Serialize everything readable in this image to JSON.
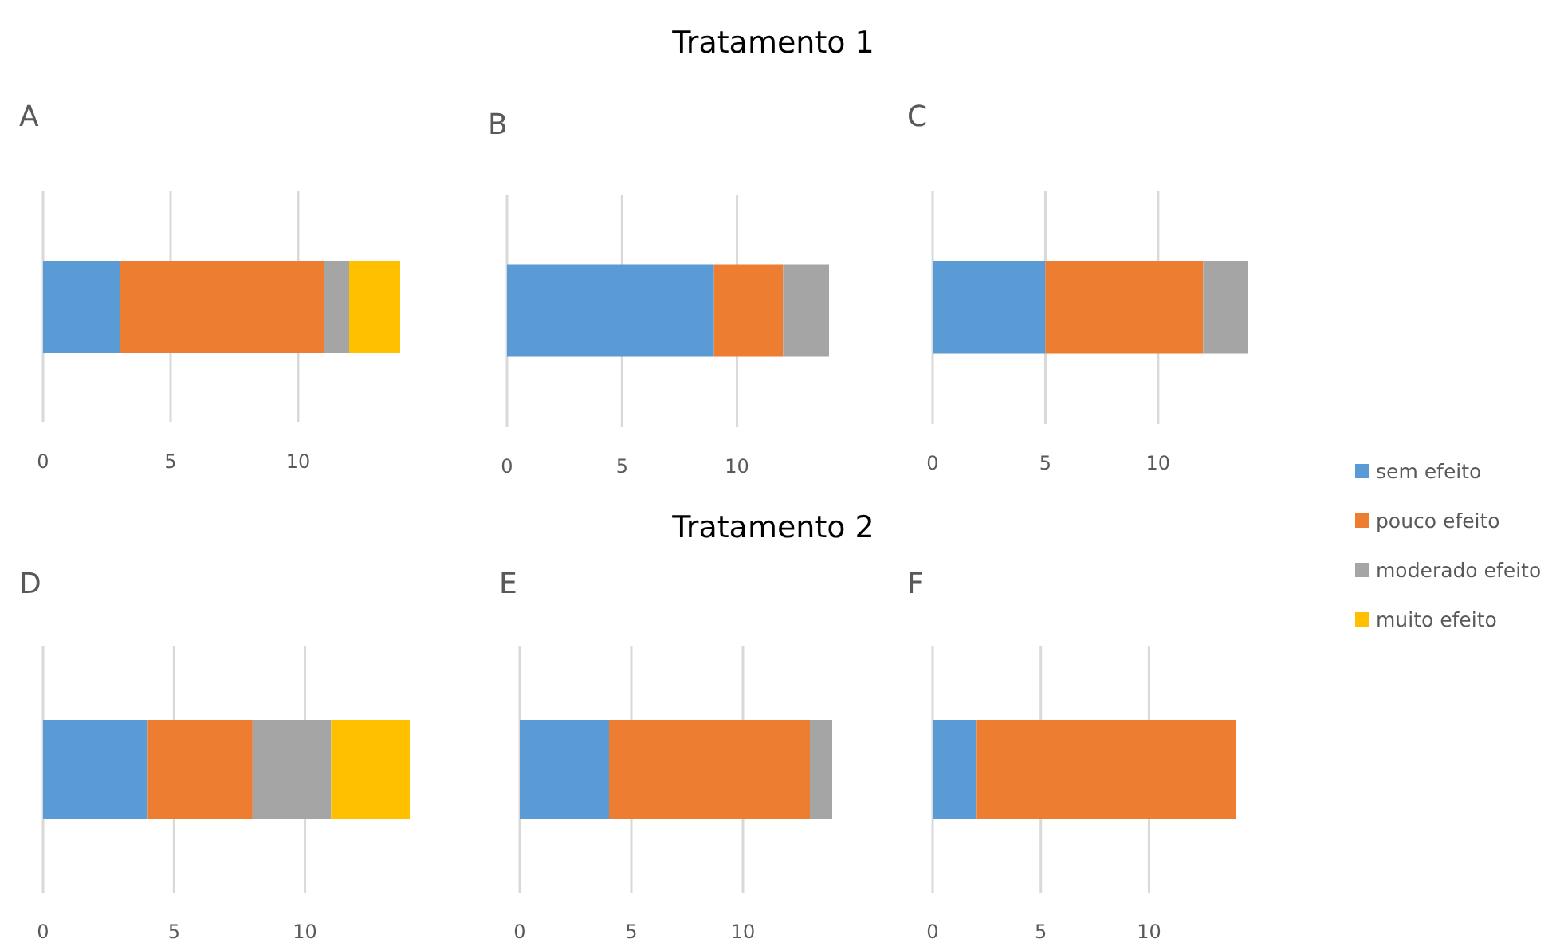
{
  "chart_data": [
    {
      "type": "bar",
      "title": "A",
      "orientation": "horizontal",
      "stacked": true,
      "categories": [
        null
      ],
      "xlim": [
        0,
        14
      ],
      "xticks": [
        0,
        5,
        10
      ],
      "grid": "x",
      "tick_labels": "x",
      "legend": "right",
      "series": [
        {
          "name": "sem efeito",
          "color": "#5b9bd5",
          "values": [
            3
          ]
        },
        {
          "name": "pouco efeito",
          "color": "#ed7d31",
          "values": [
            8
          ]
        },
        {
          "name": "moderado efeito",
          "color": "#a5a5a5",
          "values": [
            1
          ]
        },
        {
          "name": "muito efeito",
          "color": "#ffc000",
          "values": [
            2
          ]
        }
      ]
    },
    {
      "type": "bar",
      "title": "B",
      "annotations": [
        "Tratamento 1"
      ],
      "orientation": "horizontal",
      "stacked": true,
      "categories": [
        null
      ],
      "xlim": [
        0,
        14
      ],
      "xticks": [
        0,
        5,
        10
      ],
      "grid": "x",
      "tick_labels": "x",
      "series": [
        {
          "color": "#5b9bd5",
          "values": [
            9
          ]
        },
        {
          "color": "#ed7d31",
          "values": [
            3
          ]
        },
        {
          "color": "#a5a5a5",
          "values": [
            2
          ]
        }
      ]
    },
    {
      "type": "bar",
      "title": "C",
      "orientation": "horizontal",
      "stacked": true,
      "categories": [
        null
      ],
      "xlim": [
        0,
        14
      ],
      "xticks": [
        0,
        5,
        10
      ],
      "grid": "x",
      "tick_labels": "x",
      "series": [
        {
          "color": "#5b9bd5",
          "values": [
            5
          ]
        },
        {
          "color": "#ed7d31",
          "values": [
            7
          ]
        },
        {
          "color": "#a5a5a5",
          "values": [
            2
          ]
        }
      ]
    },
    {
      "type": "bar",
      "title": "D",
      "orientation": "horizontal",
      "stacked": true,
      "categories": [
        null
      ],
      "xlim": [
        0,
        14
      ],
      "xticks": [
        0,
        5,
        10
      ],
      "grid": "x",
      "tick_labels": "x",
      "series": [
        {
          "color": "#5b9bd5",
          "values": [
            4
          ]
        },
        {
          "color": "#ed7d31",
          "values": [
            4
          ]
        },
        {
          "color": "#a5a5a5",
          "values": [
            3
          ]
        },
        {
          "color": "#ffc000",
          "values": [
            3
          ]
        }
      ]
    },
    {
      "type": "bar",
      "title": "E",
      "annotations": [
        "Tratamento 2"
      ],
      "orientation": "horizontal",
      "stacked": true,
      "categories": [
        null
      ],
      "xlim": [
        0,
        14
      ],
      "xticks": [
        0,
        5,
        10
      ],
      "grid": "x",
      "tick_labels": "x",
      "series": [
        {
          "color": "#5b9bd5",
          "values": [
            4
          ]
        },
        {
          "color": "#ed7d31",
          "values": [
            9
          ]
        },
        {
          "color": "#a5a5a5",
          "values": [
            1
          ]
        }
      ]
    },
    {
      "type": "bar",
      "title": "F",
      "orientation": "horizontal",
      "stacked": true,
      "categories": [
        null
      ],
      "xlim": [
        0,
        14
      ],
      "xticks": [
        0,
        5,
        10
      ],
      "grid": "x",
      "tick_labels": "x",
      "series": [
        {
          "color": "#5b9bd5",
          "values": [
            2
          ]
        },
        {
          "color": "#ed7d31",
          "values": [
            12
          ]
        }
      ]
    }
  ]
}
